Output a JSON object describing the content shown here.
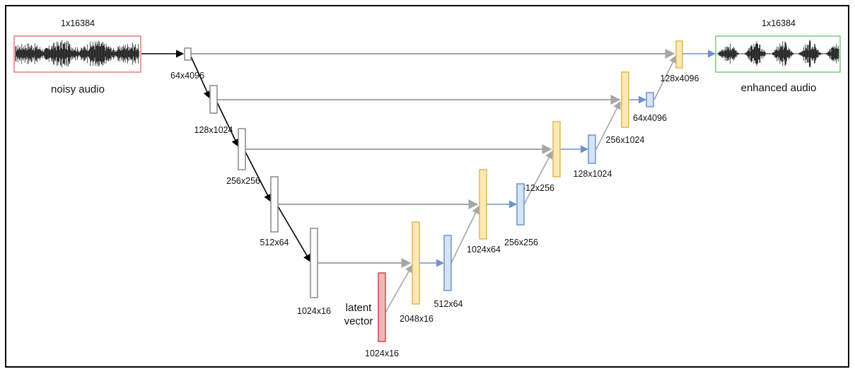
{
  "input": {
    "shape": "1x16384",
    "caption": "noisy audio"
  },
  "output": {
    "shape": "1x16384",
    "caption": "enhanced audio"
  },
  "encoder": [
    {
      "id": "e1",
      "label": "64x4096"
    },
    {
      "id": "e2",
      "label": "128x1024"
    },
    {
      "id": "e3",
      "label": "256x256"
    },
    {
      "id": "e4",
      "label": "512x64"
    },
    {
      "id": "e5",
      "label": "1024x16"
    }
  ],
  "latent": {
    "line1": "latent",
    "line2": "vector",
    "shape": "1024x16"
  },
  "decoder_concat": [
    {
      "id": "y1",
      "label": "2048x16"
    },
    {
      "id": "y2",
      "label": "1024x64"
    },
    {
      "id": "y3",
      "label": "512x256"
    },
    {
      "id": "y4",
      "label": "256x1024"
    },
    {
      "id": "y5",
      "label": "128x4096"
    }
  ],
  "decoder_blocks": [
    {
      "id": "b1",
      "label": "512x64"
    },
    {
      "id": "b2",
      "label": "256x256"
    },
    {
      "id": "b3",
      "label": "128x1024"
    },
    {
      "id": "b4",
      "label": "64x4096"
    }
  ],
  "colors": {
    "encoder": "#888888",
    "latent_fill": "#f4b6b6",
    "latent_stroke": "#d24c4c",
    "concat_fill": "#fde9b4",
    "concat_stroke": "#e2b84a",
    "block_fill": "#d6e3f7",
    "block_stroke": "#6f93c9",
    "skip_arrow": "#a6a6a6",
    "down_arrow": "#000000",
    "up_arrow": "#6f93c9",
    "input_border": "#e06666",
    "output_border": "#6abf69"
  }
}
